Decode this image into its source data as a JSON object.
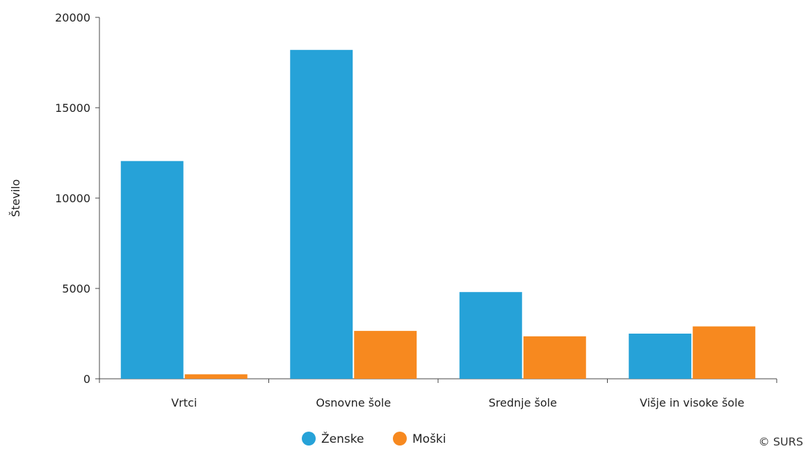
{
  "chart_data": {
    "type": "bar",
    "categories": [
      "Vrtci",
      "Osnovne šole",
      "Srednje šole",
      "Višje in visoke šole"
    ],
    "series": [
      {
        "name": "Ženske",
        "values": [
          12050,
          18200,
          4800,
          2500
        ],
        "color": "#26a2d8"
      },
      {
        "name": "Moški",
        "values": [
          250,
          2650,
          2350,
          2900
        ],
        "color": "#f7891f"
      }
    ],
    "ylabel": "Število",
    "xlabel": "",
    "ylim": [
      0,
      20000
    ],
    "yticks": [
      0,
      5000,
      10000,
      15000,
      20000
    ],
    "grid": false,
    "legend": "bottom-center"
  },
  "credit": "© SURS"
}
